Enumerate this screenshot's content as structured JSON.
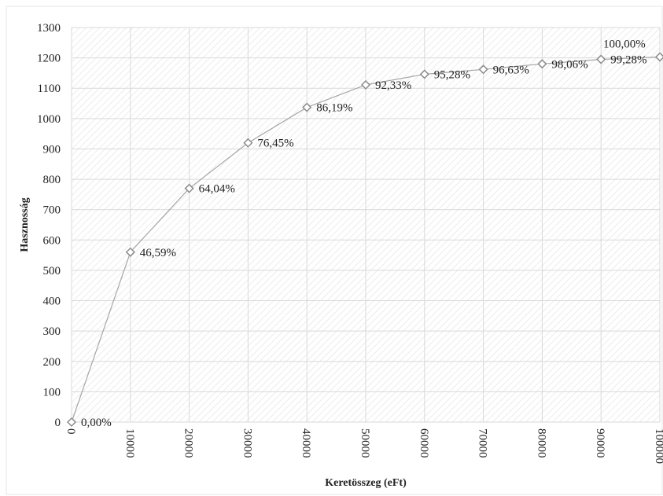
{
  "chart_data": {
    "type": "line",
    "title": "",
    "xlabel": "Keretösszeg (eFt)",
    "ylabel": "Hasznosság",
    "xlim": [
      0,
      100000
    ],
    "ylim": [
      0,
      1300
    ],
    "x_ticks": [
      "0",
      "10000",
      "20000",
      "30000",
      "40000",
      "50000",
      "60000",
      "70000",
      "80000",
      "90000",
      "100000"
    ],
    "y_ticks": [
      "0",
      "100",
      "200",
      "300",
      "400",
      "500",
      "600",
      "700",
      "800",
      "900",
      "1000",
      "1100",
      "1200",
      "1300"
    ],
    "grid": true,
    "marker": "diamond",
    "series": [
      {
        "x": [
          0,
          10000,
          20000,
          30000,
          40000,
          50000,
          60000,
          70000,
          80000,
          90000,
          100000
        ],
        "y": [
          0,
          560,
          770,
          920,
          1037,
          1111,
          1146,
          1162,
          1180,
          1195,
          1203
        ],
        "labels": [
          "0,00%",
          "46,59%",
          "64,04%",
          "76,45%",
          "86,19%",
          "92,33%",
          "95,28%",
          "96,63%",
          "98,06%",
          "99,28%",
          "100,00%"
        ]
      }
    ],
    "colors": {
      "line": "#a6a6a6",
      "marker": "#8c8c8c",
      "grid": "#d9d9d9",
      "hatch": "#ebebeb"
    }
  }
}
